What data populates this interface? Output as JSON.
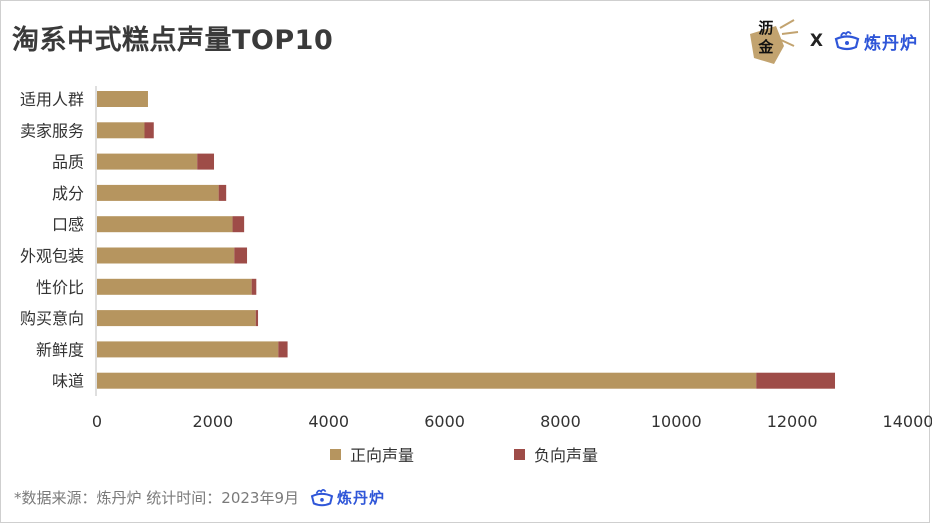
{
  "header": {
    "title": "淘系中式糕点声量TOP10",
    "partner_logo_text": "沥金",
    "cross_text": "X",
    "brand_logo_text": "炼丹炉"
  },
  "legend": {
    "positive_label": "正向声量",
    "negative_label": "负向声量"
  },
  "footer": {
    "source_text": "*数据来源：炼丹炉  统计时间：2023年9月",
    "logo_text": "炼丹炉"
  },
  "colors": {
    "positive": "#b6955f",
    "negative": "#9e4c48",
    "axis": "#bfbfbf",
    "brand_blue": "#2f56d8"
  },
  "chart_data": {
    "type": "bar",
    "orientation": "horizontal",
    "stacked": true,
    "title": "淘系中式糕点声量TOP10",
    "categories": [
      "适用人群",
      "卖家服务",
      "品质",
      "成分",
      "口感",
      "外观包装",
      "性价比",
      "购买意向",
      "新鲜度",
      "味道"
    ],
    "series": [
      {
        "name": "正向声量",
        "values": [
          880,
          820,
          1730,
          2100,
          2340,
          2370,
          2670,
          2740,
          3130,
          11380
        ]
      },
      {
        "name": "负向声量",
        "values": [
          0,
          160,
          290,
          130,
          200,
          220,
          80,
          40,
          160,
          1360
        ]
      }
    ],
    "xlim": [
      0,
      14000
    ],
    "xticks": [
      0,
      2000,
      4000,
      6000,
      8000,
      10000,
      12000,
      14000
    ],
    "xtick_labels": [
      "0",
      "2000",
      "4000",
      "6000",
      "8000",
      "10000",
      "12000",
      "14000"
    ],
    "grid": false,
    "legend_position": "bottom"
  }
}
